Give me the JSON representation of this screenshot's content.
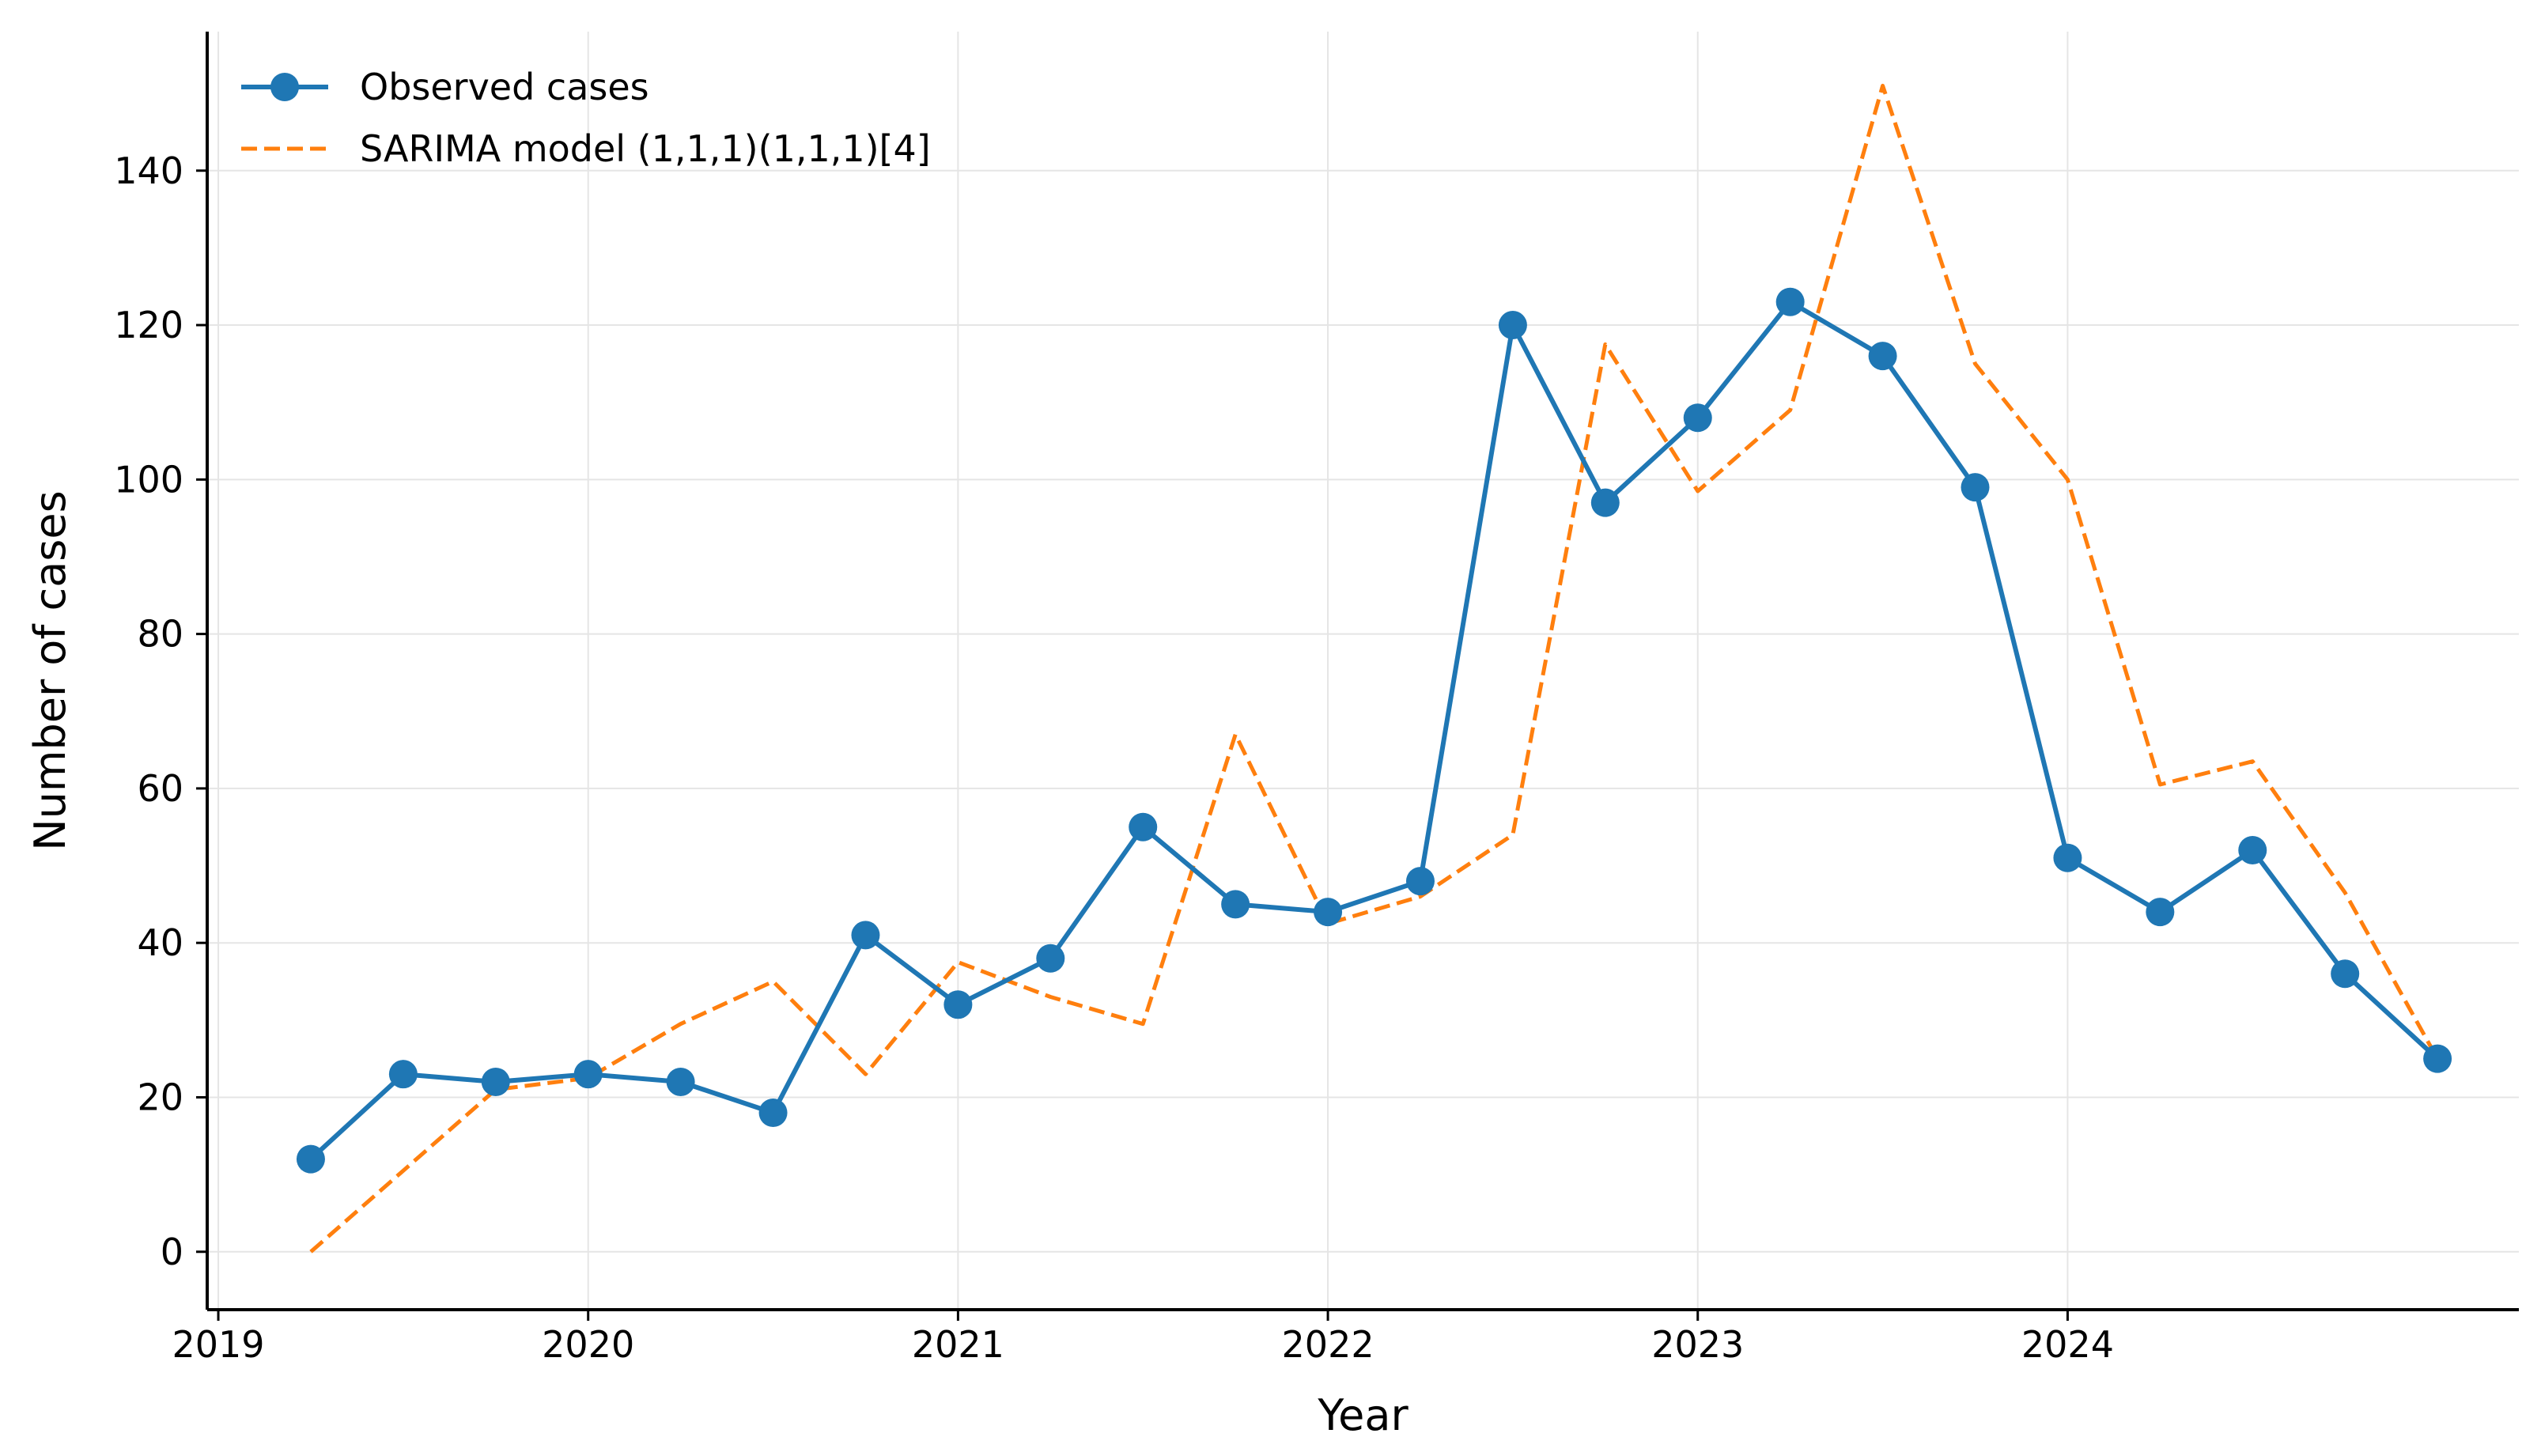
{
  "chart_data": {
    "type": "line",
    "title": "",
    "xlabel": "Year",
    "ylabel": "Number of cases",
    "xlim": [
      2018.97,
      2025.22
    ],
    "ylim": [
      -7.5,
      158
    ],
    "x_ticks": [
      2019,
      2020,
      2021,
      2022,
      2023,
      2024
    ],
    "x_tick_labels": [
      "2019",
      "2020",
      "2021",
      "2022",
      "2023",
      "2024"
    ],
    "y_ticks": [
      0,
      20,
      40,
      60,
      80,
      100,
      120,
      140
    ],
    "y_tick_labels": [
      "0",
      "20",
      "40",
      "60",
      "80",
      "100",
      "120",
      "140"
    ],
    "grid": true,
    "legend_position": "upper-left",
    "x": [
      2019.25,
      2019.5,
      2019.75,
      2020.0,
      2020.25,
      2020.5,
      2020.75,
      2021.0,
      2021.25,
      2021.5,
      2021.75,
      2022.0,
      2022.25,
      2022.5,
      2022.75,
      2023.0,
      2023.25,
      2023.5,
      2023.75,
      2024.0,
      2024.25,
      2024.5,
      2024.75,
      2025.0
    ],
    "series": [
      {
        "name": "Observed cases",
        "style": "solid-marker",
        "color": "#1f77b4",
        "values": [
          12,
          23,
          22,
          23,
          22,
          18,
          41,
          32,
          38,
          55,
          45,
          44,
          48,
          120,
          97,
          108,
          123,
          116,
          99,
          51,
          44,
          52,
          36,
          25
        ]
      },
      {
        "name": "SARIMA model (1,1,1)(1,1,1)[4]",
        "style": "dashed",
        "color": "#ff7f0e",
        "values": [
          0,
          10.5,
          21,
          22.5,
          29.5,
          35,
          23,
          37.5,
          33,
          29.5,
          67,
          42.5,
          46,
          54,
          117.5,
          98.5,
          109,
          151,
          115,
          100,
          60.5,
          63.5,
          46.5,
          25
        ]
      }
    ]
  }
}
